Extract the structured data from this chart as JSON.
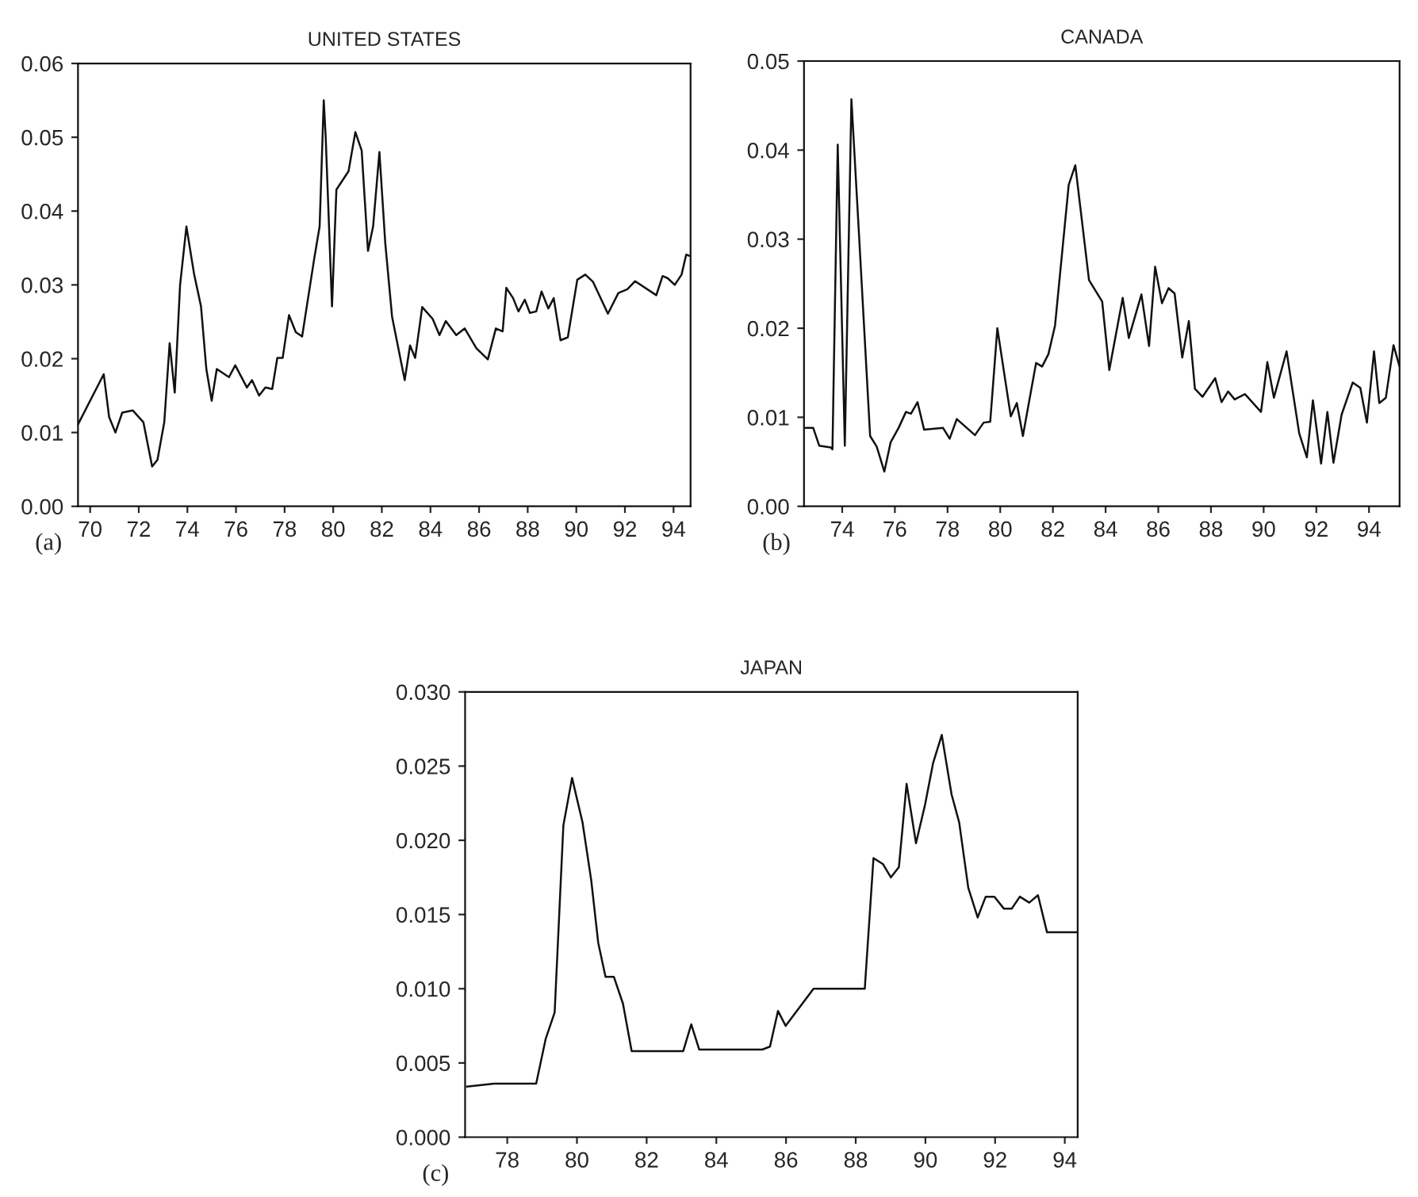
{
  "chart_data": [
    {
      "type": "line",
      "title": "UNITED STATES",
      "annotations": [
        "(a)"
      ],
      "grid": false,
      "x": [
        1969.5,
        1970.56,
        1970.78,
        1971.04,
        1971.32,
        1971.75,
        1972.19,
        1972.55,
        1972.77,
        1973.05,
        1973.27,
        1973.48,
        1973.7,
        1973.96,
        1974.28,
        1974.56,
        1974.78,
        1975.0,
        1975.21,
        1975.71,
        1975.97,
        1976.45,
        1976.66,
        1976.95,
        1977.21,
        1977.49,
        1977.7,
        1977.92,
        1978.18,
        1978.46,
        1978.72,
        1979.22,
        1979.44,
        1979.61,
        1979.69,
        1979.95,
        1980.13,
        1980.63,
        1980.91,
        1981.17,
        1981.43,
        1981.64,
        1981.9,
        1982.14,
        1982.42,
        1982.94,
        1983.16,
        1983.37,
        1983.66,
        1984.09,
        1984.37,
        1984.63,
        1985.06,
        1985.41,
        1985.89,
        1986.36,
        1986.69,
        1986.97,
        1987.12,
        1987.4,
        1987.62,
        1987.88,
        1988.09,
        1988.35,
        1988.57,
        1988.85,
        1989.07,
        1989.35,
        1989.65,
        1990.04,
        1990.37,
        1990.69,
        1991.3,
        1991.73,
        1992.1,
        1992.42,
        1993.29,
        1993.55,
        1993.76,
        1994.05,
        1994.33,
        1994.52,
        1994.69
      ],
      "series": [
        {
          "color": "#111111",
          "values": [
            0.0111,
            0.0179,
            0.0121,
            0.01,
            0.0127,
            0.013,
            0.0114,
            0.0054,
            0.0063,
            0.0114,
            0.0221,
            0.0154,
            0.03,
            0.0379,
            0.0314,
            0.0271,
            0.0186,
            0.0143,
            0.0186,
            0.0175,
            0.0191,
            0.0161,
            0.0171,
            0.015,
            0.0161,
            0.0159,
            0.0201,
            0.0201,
            0.0259,
            0.0236,
            0.023,
            0.0336,
            0.0379,
            0.055,
            0.05,
            0.0271,
            0.0429,
            0.0454,
            0.0507,
            0.0482,
            0.0346,
            0.0379,
            0.048,
            0.0357,
            0.0257,
            0.0171,
            0.0218,
            0.0201,
            0.027,
            0.0254,
            0.0232,
            0.0251,
            0.0232,
            0.0241,
            0.0214,
            0.0199,
            0.0241,
            0.0237,
            0.0296,
            0.0282,
            0.0264,
            0.028,
            0.0262,
            0.0264,
            0.0291,
            0.0268,
            0.0282,
            0.0225,
            0.0229,
            0.0307,
            0.0314,
            0.0304,
            0.0261,
            0.0289,
            0.0294,
            0.0305,
            0.0286,
            0.0312,
            0.0309,
            0.03,
            0.0314,
            0.0341,
            0.0339
          ]
        }
      ],
      "xlim": [
        1969.5,
        1994.7
      ],
      "xticks": [
        {
          "value": 1970,
          "label": "70"
        },
        {
          "value": 1972,
          "label": "72"
        },
        {
          "value": 1974,
          "label": "74"
        },
        {
          "value": 1976,
          "label": "76"
        },
        {
          "value": 1978,
          "label": "78"
        },
        {
          "value": 1980,
          "label": "80"
        },
        {
          "value": 1982,
          "label": "82"
        },
        {
          "value": 1984,
          "label": "84"
        },
        {
          "value": 1986,
          "label": "86"
        },
        {
          "value": 1988,
          "label": "88"
        },
        {
          "value": 1990,
          "label": "90"
        },
        {
          "value": 1992,
          "label": "92"
        },
        {
          "value": 1994,
          "label": "94"
        }
      ],
      "ylim": [
        0,
        0.06
      ],
      "yticks": [
        {
          "value": 0,
          "label": "0.00"
        },
        {
          "value": 0.01,
          "label": "0.01"
        },
        {
          "value": 0.02,
          "label": "0.02"
        },
        {
          "value": 0.03,
          "label": "0.03"
        },
        {
          "value": 0.04,
          "label": "0.04"
        },
        {
          "value": 0.05,
          "label": "0.05"
        },
        {
          "value": 0.06,
          "label": "0.06"
        }
      ]
    },
    {
      "type": "line",
      "title": "CANADA",
      "annotations": [
        "(b)"
      ],
      "grid": false,
      "x": [
        1972.61,
        1972.9,
        1973.13,
        1973.57,
        1973.63,
        1973.83,
        1974.1,
        1974.35,
        1974.64,
        1975.06,
        1975.31,
        1975.6,
        1975.84,
        1976.14,
        1976.42,
        1976.61,
        1976.86,
        1977.11,
        1977.83,
        1978.08,
        1978.35,
        1979.04,
        1979.37,
        1979.62,
        1979.89,
        1980.4,
        1980.63,
        1980.86,
        1981.36,
        1981.59,
        1981.83,
        1982.08,
        1982.6,
        1982.85,
        1983.37,
        1983.87,
        1984.14,
        1984.65,
        1984.88,
        1985.36,
        1985.65,
        1985.88,
        1986.14,
        1986.39,
        1986.62,
        1986.91,
        1987.16,
        1987.39,
        1987.68,
        1988.16,
        1988.4,
        1988.65,
        1988.9,
        1989.29,
        1989.9,
        1990.14,
        1990.39,
        1990.87,
        1991.35,
        1991.64,
        1991.87,
        1992.18,
        1992.42,
        1992.65,
        1992.96,
        1993.38,
        1993.67,
        1993.92,
        1994.19,
        1994.39,
        1994.64,
        1994.93,
        1995.16
      ],
      "series": [
        {
          "color": "#111111",
          "values": [
            0.0088,
            0.0088,
            0.0068,
            0.0066,
            0.0064,
            0.0406,
            0.0068,
            0.0457,
            0.0304,
            0.0079,
            0.0067,
            0.0039,
            0.0072,
            0.0088,
            0.0106,
            0.0104,
            0.0117,
            0.0086,
            0.0088,
            0.0076,
            0.0098,
            0.008,
            0.0094,
            0.0095,
            0.02,
            0.0101,
            0.0116,
            0.0079,
            0.0161,
            0.0157,
            0.0171,
            0.0203,
            0.0361,
            0.0383,
            0.0254,
            0.023,
            0.0153,
            0.0234,
            0.0189,
            0.0238,
            0.018,
            0.0269,
            0.0228,
            0.0245,
            0.0239,
            0.0167,
            0.0208,
            0.0132,
            0.0123,
            0.0144,
            0.0117,
            0.0129,
            0.012,
            0.0126,
            0.0106,
            0.0162,
            0.0122,
            0.0174,
            0.0082,
            0.0055,
            0.0119,
            0.0048,
            0.0106,
            0.0049,
            0.0103,
            0.0139,
            0.0133,
            0.0094,
            0.0174,
            0.0116,
            0.0122,
            0.0181,
            0.0157
          ]
        }
      ],
      "xlim": [
        1972.55,
        1995.16
      ],
      "xticks": [
        {
          "value": 1974,
          "label": "74"
        },
        {
          "value": 1976,
          "label": "76"
        },
        {
          "value": 1978,
          "label": "78"
        },
        {
          "value": 1980,
          "label": "80"
        },
        {
          "value": 1982,
          "label": "82"
        },
        {
          "value": 1984,
          "label": "84"
        },
        {
          "value": 1986,
          "label": "86"
        },
        {
          "value": 1988,
          "label": "88"
        },
        {
          "value": 1990,
          "label": "90"
        },
        {
          "value": 1992,
          "label": "92"
        },
        {
          "value": 1994,
          "label": "94"
        }
      ],
      "ylim": [
        0,
        0.05
      ],
      "yticks": [
        {
          "value": 0,
          "label": "0.00"
        },
        {
          "value": 0.01,
          "label": "0.01"
        },
        {
          "value": 0.02,
          "label": "0.02"
        },
        {
          "value": 0.03,
          "label": "0.03"
        },
        {
          "value": 0.04,
          "label": "0.04"
        },
        {
          "value": 0.05,
          "label": "0.05"
        }
      ]
    },
    {
      "type": "line",
      "title": "JAPAN",
      "annotations": [
        "(c)"
      ],
      "grid": false,
      "x": [
        1976.84,
        1977.62,
        1978.83,
        1979.1,
        1979.36,
        1979.61,
        1979.86,
        1980.16,
        1980.41,
        1980.61,
        1980.82,
        1981.06,
        1981.32,
        1981.57,
        1983.05,
        1983.28,
        1983.51,
        1985.32,
        1985.54,
        1985.77,
        1985.99,
        1986.79,
        1988.26,
        1988.51,
        1988.78,
        1989.01,
        1989.24,
        1989.46,
        1989.73,
        1989.99,
        1990.22,
        1990.47,
        1990.75,
        1990.97,
        1991.23,
        1991.5,
        1991.73,
        1991.98,
        1992.25,
        1992.48,
        1992.71,
        1992.98,
        1993.23,
        1993.49,
        1994.37
      ],
      "series": [
        {
          "color": "#111111",
          "values": [
            0.0034,
            0.0036,
            0.0036,
            0.0066,
            0.0084,
            0.021,
            0.0242,
            0.0212,
            0.0173,
            0.0131,
            0.0108,
            0.0108,
            0.009,
            0.0058,
            0.0058,
            0.0076,
            0.0059,
            0.0059,
            0.0061,
            0.0085,
            0.0075,
            0.01,
            0.01,
            0.0188,
            0.0184,
            0.0175,
            0.0182,
            0.0238,
            0.0198,
            0.0224,
            0.0252,
            0.0271,
            0.0231,
            0.0212,
            0.0168,
            0.0148,
            0.0162,
            0.0162,
            0.0154,
            0.0154,
            0.0162,
            0.0158,
            0.0163,
            0.0138,
            0.0138
          ]
        }
      ],
      "xlim": [
        1976.79,
        1994.37
      ],
      "xticks": [
        {
          "value": 1978,
          "label": "78"
        },
        {
          "value": 1980,
          "label": "80"
        },
        {
          "value": 1982,
          "label": "82"
        },
        {
          "value": 1984,
          "label": "84"
        },
        {
          "value": 1986,
          "label": "86"
        },
        {
          "value": 1988,
          "label": "88"
        },
        {
          "value": 1990,
          "label": "90"
        },
        {
          "value": 1992,
          "label": "92"
        },
        {
          "value": 1994,
          "label": "94"
        }
      ],
      "ylim": [
        0,
        0.03
      ],
      "yticks": [
        {
          "value": 0,
          "label": "0.000"
        },
        {
          "value": 0.005,
          "label": "0.005"
        },
        {
          "value": 0.01,
          "label": "0.010"
        },
        {
          "value": 0.015,
          "label": "0.015"
        },
        {
          "value": 0.02,
          "label": "0.020"
        },
        {
          "value": 0.025,
          "label": "0.025"
        },
        {
          "value": 0.03,
          "label": "0.030"
        }
      ]
    }
  ]
}
